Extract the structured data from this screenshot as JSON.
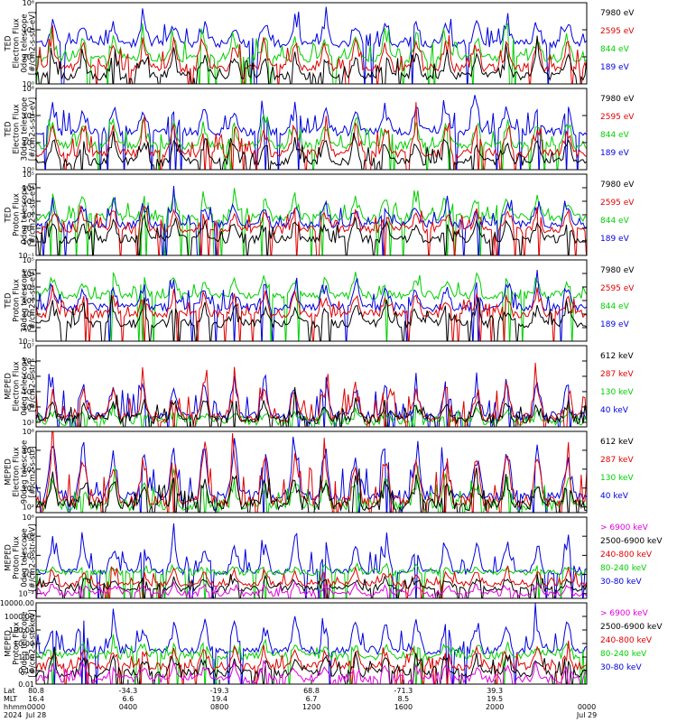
{
  "chart_data": [
    {
      "type": "line",
      "ylabel_lines": [
        "TED",
        "Electron Flux",
        "0deg telescope",
        "[#/cm2-s-str-eV]"
      ],
      "y_ticks": [
        {
          "label": "10⁰",
          "exp": 0
        },
        {
          "label": "10²",
          "exp": 2
        },
        {
          "label": "10⁴",
          "exp": 4
        },
        {
          "label": "10⁶",
          "exp": 6
        }
      ],
      "ylim_exp": [
        0,
        6
      ],
      "legend": [
        {
          "name": "7980 eV",
          "color": "#000000"
        },
        {
          "name": "2595 eV",
          "color": "#e00000"
        },
        {
          "name": "844 eV",
          "color": "#00d000"
        },
        {
          "name": "189 eV",
          "color": "#0000e0"
        }
      ],
      "series": [
        {
          "name": "189 eV",
          "color": "#0000e0",
          "base": 3.0,
          "amp": 1.8
        },
        {
          "name": "844 eV",
          "color": "#00d000",
          "base": 1.9,
          "amp": 1.8
        },
        {
          "name": "2595 eV",
          "color": "#e00000",
          "base": 1.2,
          "amp": 2.2
        },
        {
          "name": "7980 eV",
          "color": "#000000",
          "base": 0.6,
          "amp": 1.8
        }
      ]
    },
    {
      "type": "line",
      "ylabel_lines": [
        "TED",
        "Electron Flux",
        "30deg telescope",
        "[#/cm2-s-str-eV]"
      ],
      "y_ticks": [
        {
          "label": "10⁰",
          "exp": 0
        },
        {
          "label": "10²",
          "exp": 2
        },
        {
          "label": "10⁴",
          "exp": 4
        },
        {
          "label": "10⁶",
          "exp": 6
        }
      ],
      "ylim_exp": [
        0,
        6
      ],
      "legend": [
        {
          "name": "7980 eV",
          "color": "#000000"
        },
        {
          "name": "2595 eV",
          "color": "#e00000"
        },
        {
          "name": "844 eV",
          "color": "#00d000"
        },
        {
          "name": "189 eV",
          "color": "#0000e0"
        }
      ],
      "series": [
        {
          "name": "189 eV",
          "color": "#0000e0",
          "base": 2.8,
          "amp": 2.0
        },
        {
          "name": "844 eV",
          "color": "#00d000",
          "base": 1.8,
          "amp": 1.9
        },
        {
          "name": "2595 eV",
          "color": "#e00000",
          "base": 1.2,
          "amp": 2.2
        },
        {
          "name": "7980 eV",
          "color": "#000000",
          "base": 0.6,
          "amp": 1.6
        }
      ]
    },
    {
      "type": "line",
      "ylabel_lines": [
        "TED",
        "Proton Flux",
        "0deg telescope",
        "[#/cm2-s-str-eV]"
      ],
      "y_ticks": [
        {
          "label": "10⁻¹",
          "exp": -1
        },
        {
          "label": "10⁰",
          "exp": 0
        },
        {
          "label": "10¹",
          "exp": 1
        },
        {
          "label": "10²",
          "exp": 2
        },
        {
          "label": "10³",
          "exp": 3
        },
        {
          "label": "10⁴",
          "exp": 4
        },
        {
          "label": "10⁵",
          "exp": 5
        }
      ],
      "ylim_exp": [
        -1,
        5
      ],
      "legend": [
        {
          "name": "7980 eV",
          "color": "#000000"
        },
        {
          "name": "2595 eV",
          "color": "#e00000"
        },
        {
          "name": "844 eV",
          "color": "#00d000"
        },
        {
          "name": "189 eV",
          "color": "#0000e0"
        }
      ],
      "series": [
        {
          "name": "844 eV",
          "color": "#00d000",
          "base": 1.8,
          "amp": 1.8
        },
        {
          "name": "189 eV",
          "color": "#0000e0",
          "base": 1.3,
          "amp": 1.6
        },
        {
          "name": "2595 eV",
          "color": "#e00000",
          "base": 0.9,
          "amp": 1.4
        },
        {
          "name": "7980 eV",
          "color": "#000000",
          "base": 0.2,
          "amp": 1.4
        }
      ]
    },
    {
      "type": "line",
      "ylabel_lines": [
        "TED",
        "Proton Flux",
        "30deg telescope",
        "[#/cm2-s-str-eV]"
      ],
      "y_ticks": [
        {
          "label": "10⁻¹",
          "exp": -1
        },
        {
          "label": "10⁰",
          "exp": 0
        },
        {
          "label": "10¹",
          "exp": 1
        },
        {
          "label": "10²",
          "exp": 2
        },
        {
          "label": "10³",
          "exp": 3
        },
        {
          "label": "10⁴",
          "exp": 4
        },
        {
          "label": "10⁵",
          "exp": 5
        }
      ],
      "ylim_exp": [
        -1,
        5
      ],
      "legend": [
        {
          "name": "7980 eV",
          "color": "#000000"
        },
        {
          "name": "2595 eV",
          "color": "#e00000"
        },
        {
          "name": "844 eV",
          "color": "#00d000"
        },
        {
          "name": "189 eV",
          "color": "#0000e0"
        }
      ],
      "series": [
        {
          "name": "844 eV",
          "color": "#00d000",
          "base": 2.4,
          "amp": 1.4
        },
        {
          "name": "189 eV",
          "color": "#0000e0",
          "base": 1.5,
          "amp": 1.8
        },
        {
          "name": "2595 eV",
          "color": "#e00000",
          "base": 1.0,
          "amp": 1.6
        },
        {
          "name": "7980 eV",
          "color": "#000000",
          "base": 0.3,
          "amp": 1.4
        }
      ]
    },
    {
      "type": "line",
      "ylabel_lines": [
        "MEPED",
        "Electron Flux",
        "0deg telescope",
        "[#/cm2-s-str]"
      ],
      "y_ticks": [
        {
          "label": "10²",
          "exp": 2
        },
        {
          "label": "10³",
          "exp": 3
        },
        {
          "label": "10⁴",
          "exp": 4
        },
        {
          "label": "10⁵",
          "exp": 5
        },
        {
          "label": "10⁶",
          "exp": 6
        },
        {
          "label": "10⁷",
          "exp": 7
        }
      ],
      "ylim_exp": [
        1.7,
        7
      ],
      "legend": [
        {
          "name": "612 keV",
          "color": "#000000"
        },
        {
          "name": "287 keV",
          "color": "#e00000"
        },
        {
          "name": "130 keV",
          "color": "#00d000"
        },
        {
          "name": "40 keV",
          "color": "#0000e0"
        }
      ],
      "series": [
        {
          "name": "40 keV",
          "color": "#0000e0",
          "base": 2.4,
          "amp": 2.6
        },
        {
          "name": "130 keV",
          "color": "#00d000",
          "base": 2.1,
          "amp": 0.7
        },
        {
          "name": "287 keV",
          "color": "#e00000",
          "base": 2.3,
          "amp": 2.4
        },
        {
          "name": "612 keV",
          "color": "#000000",
          "base": 2.2,
          "amp": 1.2
        }
      ]
    },
    {
      "type": "line",
      "ylabel_lines": [
        "MEPED",
        "Electron Flux",
        "90deg telescope",
        "[#/cm2-s-str]"
      ],
      "y_ticks": [
        {
          "label": "10²",
          "exp": 2
        },
        {
          "label": "10³",
          "exp": 3
        },
        {
          "label": "10⁴",
          "exp": 4
        },
        {
          "label": "10⁵",
          "exp": 5
        },
        {
          "label": "10⁶",
          "exp": 6
        }
      ],
      "ylim_exp": [
        1.7,
        6
      ],
      "legend": [
        {
          "name": "612 keV",
          "color": "#000000"
        },
        {
          "name": "287 keV",
          "color": "#e00000"
        },
        {
          "name": "130 keV",
          "color": "#00d000"
        },
        {
          "name": "40 keV",
          "color": "#0000e0"
        }
      ],
      "series": [
        {
          "name": "40 keV",
          "color": "#0000e0",
          "base": 2.6,
          "amp": 3.0
        },
        {
          "name": "130 keV",
          "color": "#00d000",
          "base": 2.1,
          "amp": 1.5
        },
        {
          "name": "287 keV",
          "color": "#e00000",
          "base": 2.3,
          "amp": 2.8
        },
        {
          "name": "612 keV",
          "color": "#000000",
          "base": 2.1,
          "amp": 1.6
        }
      ]
    },
    {
      "type": "line",
      "ylabel_lines": [
        "MEPED",
        "Proton Flux",
        "0deg telescope",
        "[#/cm2-s-str-keV]"
      ],
      "y_ticks": [
        {
          "label": "10⁻²",
          "exp": -2
        },
        {
          "label": "10⁰",
          "exp": 0
        },
        {
          "label": "10²",
          "exp": 2
        },
        {
          "label": "10⁴",
          "exp": 4
        },
        {
          "label": "10⁶",
          "exp": 6
        }
      ],
      "ylim_exp": [
        -2.5,
        6
      ],
      "legend": [
        {
          "name": "> 6900 keV",
          "color": "#e000e0"
        },
        {
          "name": "2500-6900 keV",
          "color": "#000000"
        },
        {
          "name": "240-800 keV",
          "color": "#e00000"
        },
        {
          "name": "80-240 keV",
          "color": "#00d000"
        },
        {
          "name": "30-80 keV",
          "color": "#0000e0"
        }
      ],
      "series": [
        {
          "name": "30-80 keV",
          "color": "#0000e0",
          "base": 0.3,
          "amp": 3.2
        },
        {
          "name": "80-240 keV",
          "color": "#00d000",
          "base": 0.2,
          "amp": 0.7
        },
        {
          "name": "240-800 keV",
          "color": "#e00000",
          "base": -1.0,
          "amp": 1.4
        },
        {
          "name": "2500-6900 keV",
          "color": "#000000",
          "base": -1.5,
          "amp": 1.2
        },
        {
          "name": "> 6900 keV",
          "color": "#e000e0",
          "base": -2.0,
          "amp": 1.0
        }
      ]
    },
    {
      "type": "line",
      "ylabel_lines": [
        "MEPED",
        "Proton Flux",
        "90deg telescope",
        "[#/cm2-s-str-keV]"
      ],
      "y_ticks": [
        {
          "label": "0.01",
          "exp": -2
        },
        {
          "label": "0.10",
          "exp": -1
        },
        {
          "label": "1.00",
          "exp": 0
        },
        {
          "label": "10.00",
          "exp": 1
        },
        {
          "label": "100.00",
          "exp": 2
        },
        {
          "label": "1000.00",
          "exp": 3
        },
        {
          "label": "10000.00",
          "exp": 4
        }
      ],
      "ylim_exp": [
        -2,
        4
      ],
      "legend": [
        {
          "name": "> 6900 keV",
          "color": "#e000e0"
        },
        {
          "name": "2500-6900 keV",
          "color": "#000000"
        },
        {
          "name": "240-800 keV",
          "color": "#e00000"
        },
        {
          "name": "80-240 keV",
          "color": "#00d000"
        },
        {
          "name": "30-80 keV",
          "color": "#0000e0"
        }
      ],
      "series": [
        {
          "name": "30-80 keV",
          "color": "#0000e0",
          "base": 0.5,
          "amp": 2.5
        },
        {
          "name": "80-240 keV",
          "color": "#00d000",
          "base": 0.1,
          "amp": 0.9
        },
        {
          "name": "240-800 keV",
          "color": "#e00000",
          "base": -0.7,
          "amp": 1.4
        },
        {
          "name": "2500-6900 keV",
          "color": "#000000",
          "base": -1.2,
          "amp": 1.3
        },
        {
          "name": "> 6900 keV",
          "color": "#e000e0",
          "base": -1.6,
          "amp": 1.0
        }
      ]
    }
  ],
  "x_axis": {
    "row_labels": [
      "Lat",
      "MLT",
      "hhmm",
      "2024"
    ],
    "ticks": [
      {
        "frac": 0.0,
        "lat": "80.8",
        "mlt": "16.4",
        "hhmm": "0000",
        "date": "Jul 28"
      },
      {
        "frac": 0.167,
        "lat": "-34.3",
        "mlt": "6.6",
        "hhmm": "0400",
        "date": ""
      },
      {
        "frac": 0.333,
        "lat": "-19.3",
        "mlt": "19.4",
        "hhmm": "0800",
        "date": ""
      },
      {
        "frac": 0.5,
        "lat": "68.8",
        "mlt": "6.7",
        "hhmm": "1200",
        "date": ""
      },
      {
        "frac": 0.667,
        "lat": "-71.3",
        "mlt": "8.5",
        "hhmm": "1600",
        "date": ""
      },
      {
        "frac": 0.833,
        "lat": "39.3",
        "mlt": "19.5",
        "hhmm": "2000",
        "date": ""
      },
      {
        "frac": 1.0,
        "lat": "",
        "mlt": "",
        "hhmm": "0000",
        "date": "Jul 29"
      }
    ]
  }
}
